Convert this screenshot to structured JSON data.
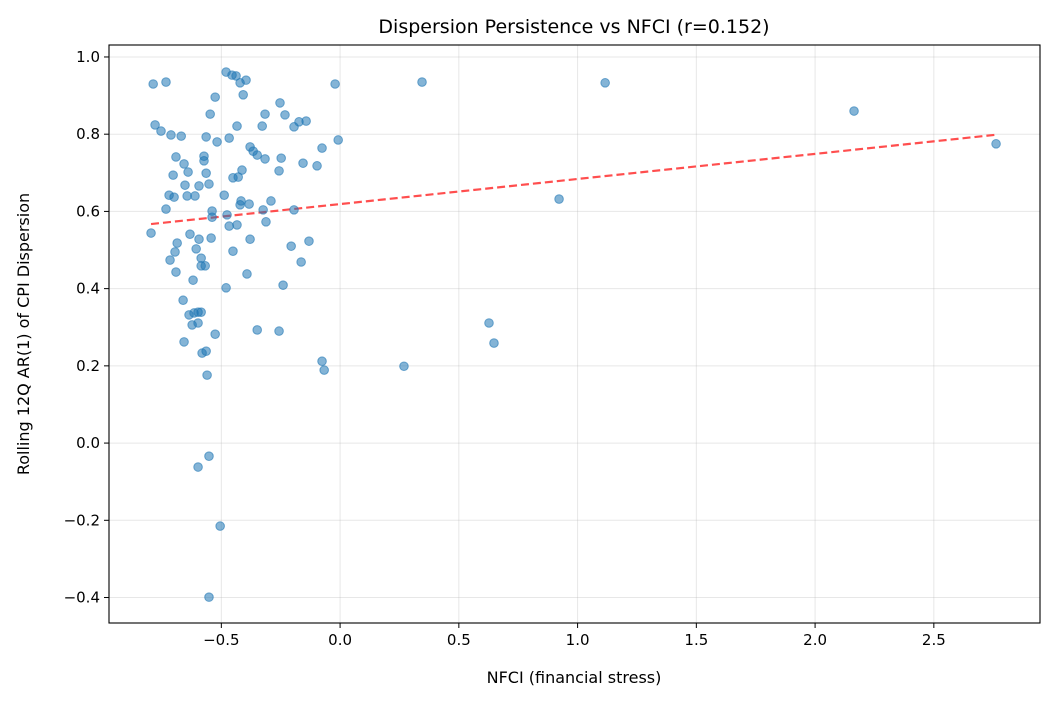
{
  "chart_data": {
    "type": "scatter",
    "title": "Dispersion Persistence vs NFCI (r=0.152)",
    "xlabel": "NFCI (financial stress)",
    "ylabel": "Rolling 12Q AR(1) of CPI Dispersion",
    "xlim": [
      -0.973,
      2.947
    ],
    "ylim": [
      -0.466,
      1.031
    ],
    "xticks": [
      -0.5,
      0.0,
      0.5,
      1.0,
      1.5,
      2.0,
      2.5
    ],
    "xtick_labels": [
      "−0.5",
      "0.0",
      "0.5",
      "1.0",
      "1.5",
      "2.0",
      "2.5"
    ],
    "yticks": [
      -0.4,
      -0.2,
      0.0,
      0.2,
      0.4,
      0.6,
      0.8,
      1.0
    ],
    "ytick_labels": [
      "−0.4",
      "−0.2",
      "0.0",
      "0.2",
      "0.4",
      "0.6",
      "0.8",
      "1.0"
    ],
    "grid": true,
    "point_color": "#1f77b4",
    "trend_color": "#ff4444",
    "trend_line": {
      "style": "dashed",
      "slope": 0.065,
      "intercept": 0.619,
      "x_range": [
        -0.796,
        2.762
      ]
    },
    "points": [
      [
        -0.787,
        0.93
      ],
      [
        -0.733,
        0.935
      ],
      [
        -0.779,
        0.824
      ],
      [
        -0.754,
        0.808
      ],
      [
        -0.712,
        0.798
      ],
      [
        -0.669,
        0.795
      ],
      [
        -0.48,
        0.961
      ],
      [
        -0.455,
        0.953
      ],
      [
        -0.438,
        0.951
      ],
      [
        -0.421,
        0.933
      ],
      [
        -0.396,
        0.94
      ],
      [
        -0.408,
        0.902
      ],
      [
        -0.526,
        0.896
      ],
      [
        -0.021,
        0.93
      ],
      [
        0.345,
        0.935
      ],
      [
        1.116,
        0.933
      ],
      [
        2.164,
        0.86
      ],
      [
        2.762,
        0.775
      ],
      [
        -0.547,
        0.852
      ],
      [
        -0.564,
        0.793
      ],
      [
        -0.467,
        0.79
      ],
      [
        -0.434,
        0.821
      ],
      [
        -0.518,
        0.78
      ],
      [
        -0.316,
        0.852
      ],
      [
        -0.328,
        0.821
      ],
      [
        -0.253,
        0.881
      ],
      [
        -0.232,
        0.85
      ],
      [
        -0.194,
        0.819
      ],
      [
        -0.173,
        0.832
      ],
      [
        -0.143,
        0.834
      ],
      [
        -0.008,
        0.785
      ],
      [
        -0.076,
        0.764
      ],
      [
        -0.379,
        0.767
      ],
      [
        -0.366,
        0.756
      ],
      [
        -0.349,
        0.746
      ],
      [
        -0.316,
        0.736
      ],
      [
        -0.248,
        0.738
      ],
      [
        -0.156,
        0.725
      ],
      [
        -0.097,
        0.718
      ],
      [
        -0.257,
        0.705
      ],
      [
        -0.691,
        0.741
      ],
      [
        -0.573,
        0.743
      ],
      [
        -0.573,
        0.731
      ],
      [
        -0.657,
        0.723
      ],
      [
        -0.64,
        0.702
      ],
      [
        -0.703,
        0.694
      ],
      [
        -0.564,
        0.699
      ],
      [
        -0.413,
        0.707
      ],
      [
        -0.429,
        0.689
      ],
      [
        -0.451,
        0.687
      ],
      [
        -0.653,
        0.668
      ],
      [
        -0.552,
        0.671
      ],
      [
        -0.594,
        0.666
      ],
      [
        -0.72,
        0.642
      ],
      [
        -0.699,
        0.637
      ],
      [
        -0.644,
        0.64
      ],
      [
        -0.611,
        0.64
      ],
      [
        -0.488,
        0.642
      ],
      [
        -0.291,
        0.627
      ],
      [
        -0.417,
        0.627
      ],
      [
        -0.421,
        0.617
      ],
      [
        -0.383,
        0.619
      ],
      [
        -0.324,
        0.604
      ],
      [
        -0.194,
        0.604
      ],
      [
        -0.733,
        0.606
      ],
      [
        -0.539,
        0.601
      ],
      [
        -0.539,
        0.585
      ],
      [
        -0.476,
        0.591
      ],
      [
        -0.312,
        0.573
      ],
      [
        -0.467,
        0.562
      ],
      [
        -0.434,
        0.565
      ],
      [
        -0.796,
        0.544
      ],
      [
        -0.632,
        0.541
      ],
      [
        -0.686,
        0.518
      ],
      [
        -0.594,
        0.528
      ],
      [
        -0.543,
        0.531
      ],
      [
        -0.379,
        0.528
      ],
      [
        -0.206,
        0.51
      ],
      [
        -0.131,
        0.523
      ],
      [
        -0.606,
        0.503
      ],
      [
        -0.695,
        0.495
      ],
      [
        -0.451,
        0.497
      ],
      [
        -0.716,
        0.474
      ],
      [
        -0.585,
        0.479
      ],
      [
        -0.585,
        0.459
      ],
      [
        -0.568,
        0.459
      ],
      [
        -0.691,
        0.443
      ],
      [
        -0.164,
        0.469
      ],
      [
        -0.392,
        0.438
      ],
      [
        -0.619,
        0.422
      ],
      [
        -0.24,
        0.409
      ],
      [
        -0.48,
        0.402
      ],
      [
        -0.661,
        0.37
      ],
      [
        -0.598,
        0.339
      ],
      [
        -0.615,
        0.337
      ],
      [
        -0.585,
        0.339
      ],
      [
        -0.636,
        0.332
      ],
      [
        -0.623,
        0.306
      ],
      [
        -0.598,
        0.311
      ],
      [
        -0.526,
        0.282
      ],
      [
        -0.349,
        0.293
      ],
      [
        -0.257,
        0.29
      ],
      [
        0.627,
        0.311
      ],
      [
        0.648,
        0.259
      ],
      [
        -0.657,
        0.262
      ],
      [
        -0.564,
        0.238
      ],
      [
        -0.581,
        0.233
      ],
      [
        -0.076,
        0.212
      ],
      [
        -0.067,
        0.189
      ],
      [
        0.269,
        0.199
      ],
      [
        -0.56,
        0.176
      ],
      [
        0.922,
        0.632
      ],
      [
        -0.552,
        -0.034
      ],
      [
        -0.598,
        -0.062
      ],
      [
        -0.505,
        -0.215
      ],
      [
        -0.552,
        -0.399
      ]
    ]
  }
}
